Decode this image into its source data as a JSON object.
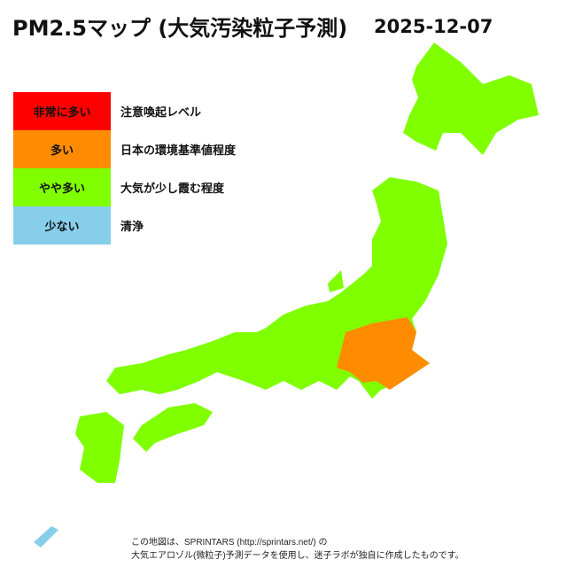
{
  "title": "PM2.5マップ (大気汚染粒子予測)",
  "date": "2025-12-07",
  "colors": {
    "very_high": "#ff0000",
    "high": "#ff8c00",
    "moderate": "#7fff00",
    "low": "#87ceeb"
  },
  "legend": [
    {
      "label": "非常に多い",
      "desc": "注意喚起レベル",
      "color": "#ff0000"
    },
    {
      "label": "多い",
      "desc": "日本の環境基準値程度",
      "color": "#ff8c00"
    },
    {
      "label": "やや多い",
      "desc": "大気が少し霞む程度",
      "color": "#7fff00"
    },
    {
      "label": "少ない",
      "desc": "清浄",
      "color": "#87ceeb"
    }
  ],
  "regions": [
    {
      "name": "hokkaido",
      "level": "moderate"
    },
    {
      "name": "tohoku-chubu-kansai-chugoku",
      "level": "moderate"
    },
    {
      "name": "kanto",
      "level": "high"
    },
    {
      "name": "shikoku",
      "level": "moderate"
    },
    {
      "name": "kyushu",
      "level": "moderate"
    },
    {
      "name": "sado",
      "level": "moderate"
    },
    {
      "name": "okinawa",
      "level": "low"
    }
  ],
  "note": {
    "line1": "この地図は、SPRINTARS (http://sprintars.net/) の",
    "line2": "大気エアロゾル(微粒子)予測データを使用し、迷子ラボが独自に作成したものです。"
  }
}
